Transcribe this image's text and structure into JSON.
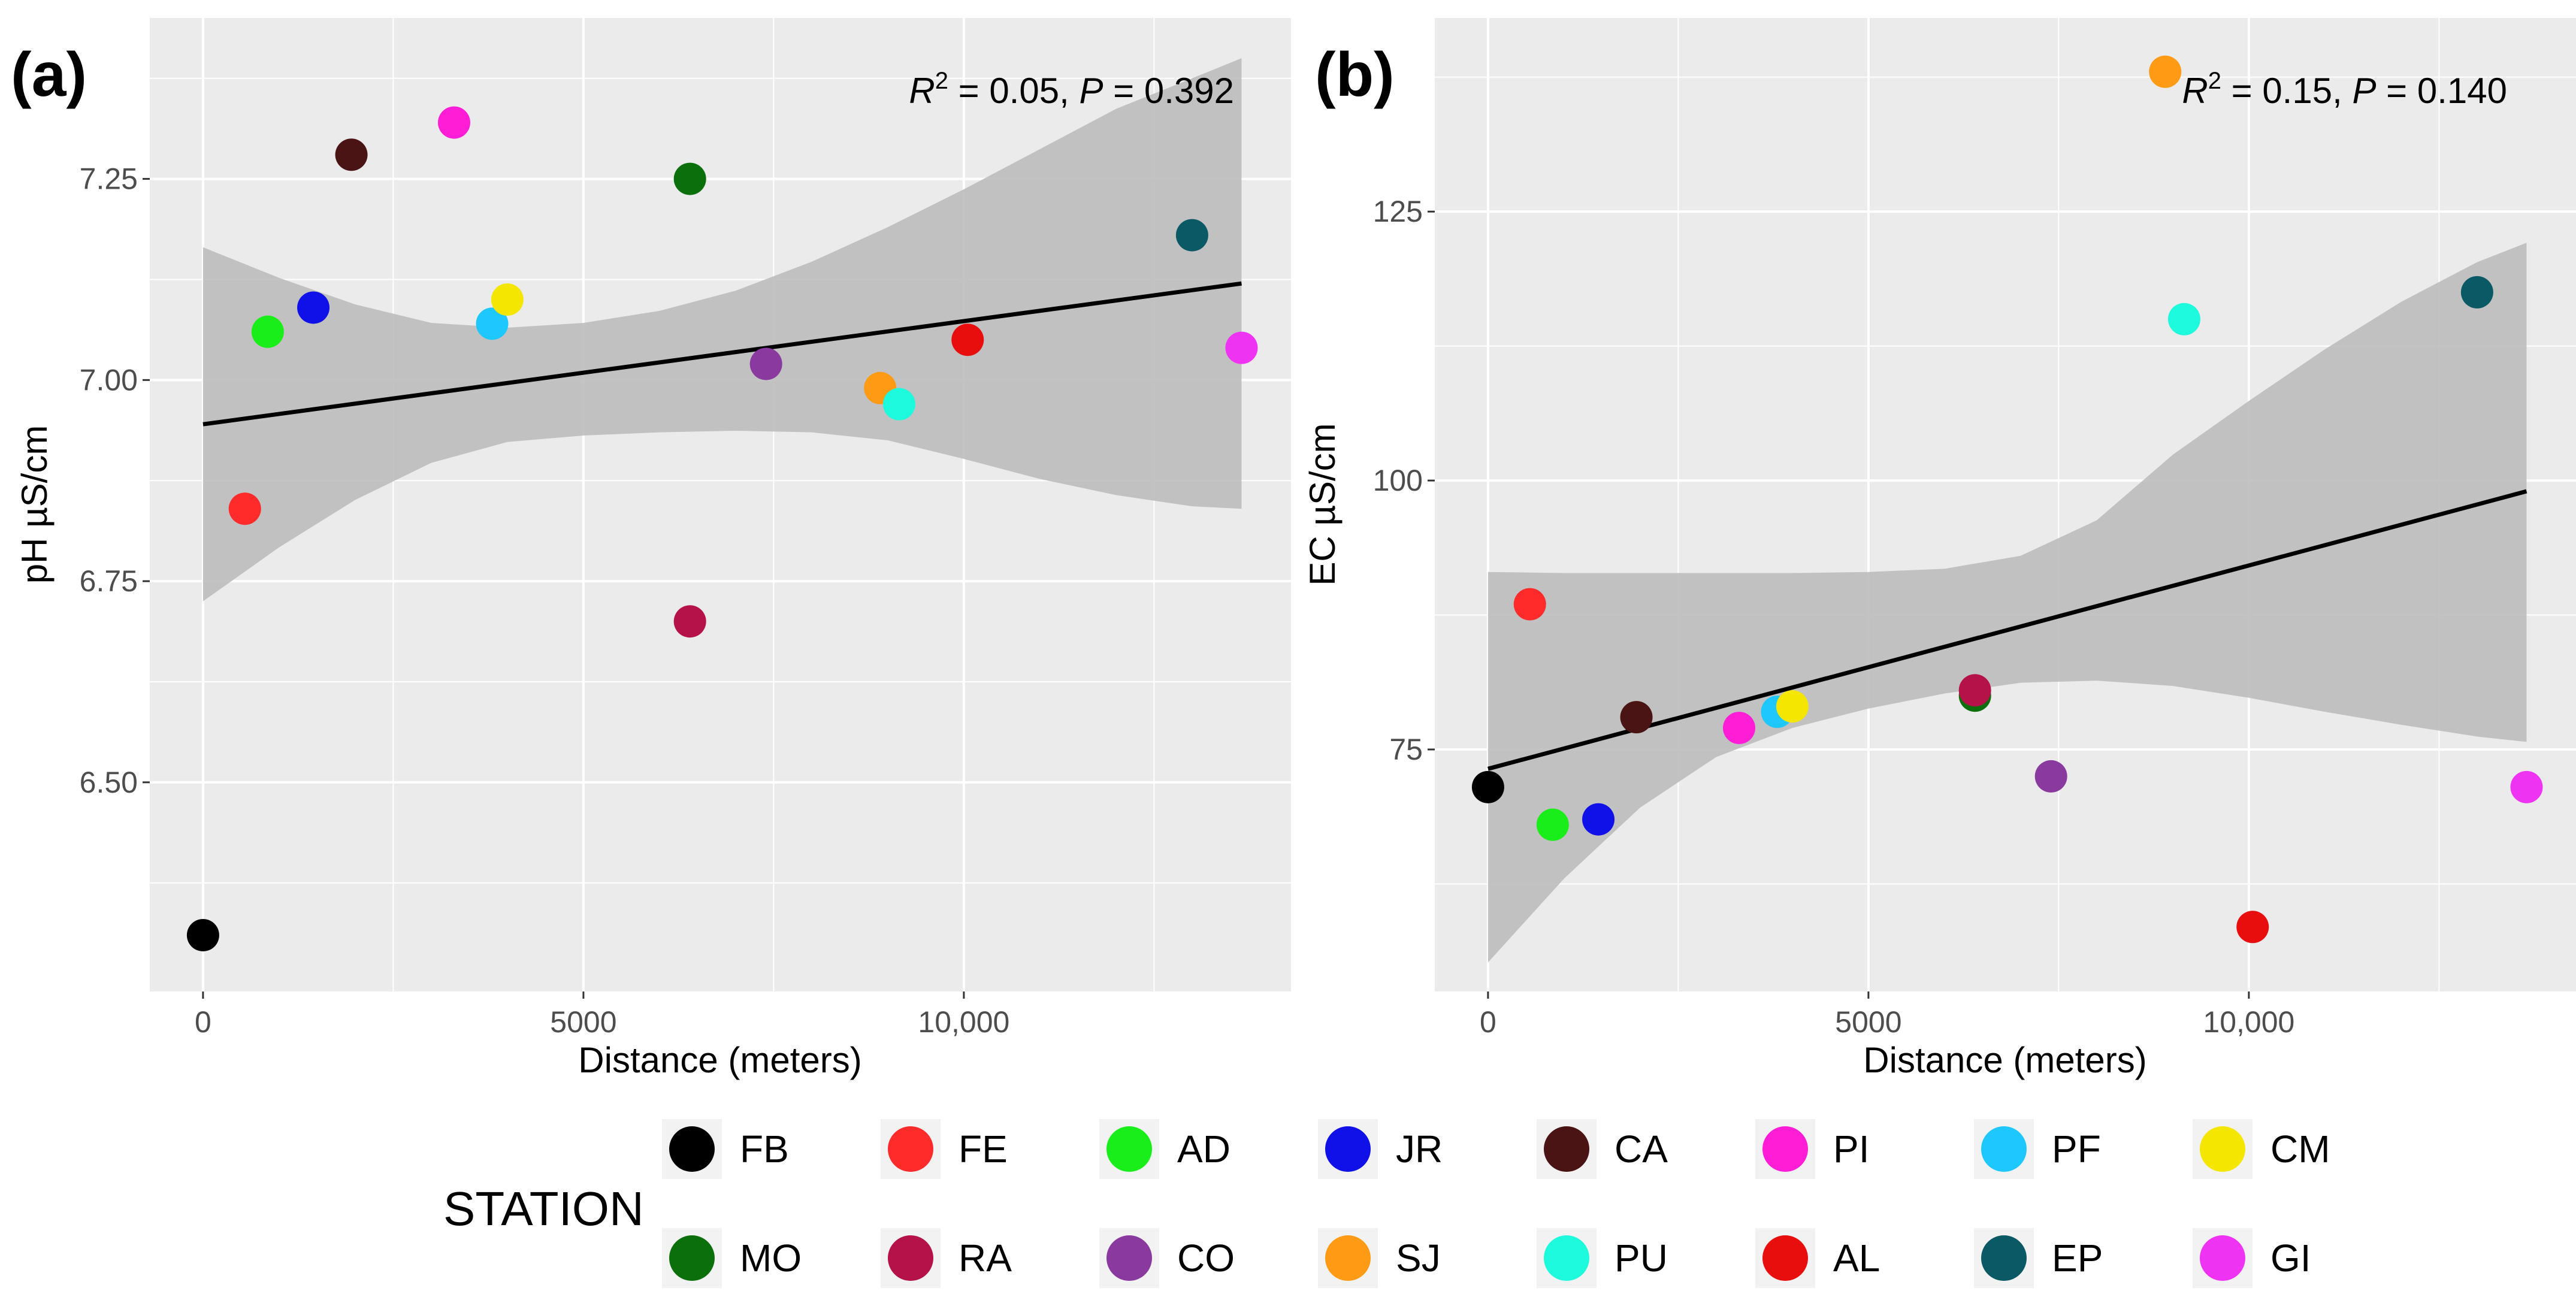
{
  "chart_data": [
    {
      "type": "scatter",
      "panel_label": "(a)",
      "xlabel": "Distance (meters)",
      "ylabel": "pH  µS/cm",
      "xlim": [
        -700,
        14300
      ],
      "ylim": [
        6.24,
        7.45
      ],
      "xticks": [
        0,
        5000,
        10000
      ],
      "xtick_labels": [
        "0",
        "5000",
        "10,000"
      ],
      "yticks": [
        6.5,
        6.75,
        7.0,
        7.25
      ],
      "ytick_labels": [
        "6.50",
        "6.75",
        "7.00",
        "7.25"
      ],
      "annotation": {
        "r2_label": "R",
        "r2_sup": "2",
        "r2_value": " = 0.05, ",
        "p_label": "P",
        "p_value": " = 0.392"
      },
      "fit": {
        "x": [
          0,
          13650
        ],
        "y": [
          6.945,
          7.12
        ]
      },
      "ci_band": {
        "x": [
          0,
          1000,
          2000,
          3000,
          4000,
          5000,
          6000,
          7000,
          8000,
          9000,
          10000,
          11000,
          12000,
          13000,
          13650
        ],
        "lower": [
          6.725,
          6.792,
          6.851,
          6.897,
          6.923,
          6.931,
          6.935,
          6.937,
          6.935,
          6.925,
          6.902,
          6.877,
          6.857,
          6.843,
          6.84
        ],
        "upper": [
          7.165,
          7.127,
          7.094,
          7.071,
          7.065,
          7.071,
          7.086,
          7.111,
          7.147,
          7.19,
          7.237,
          7.287,
          7.337,
          7.375,
          7.4
        ]
      },
      "points": [
        {
          "station": "FB",
          "x": 0,
          "y": 6.31
        },
        {
          "station": "FE",
          "x": 550,
          "y": 6.84
        },
        {
          "station": "AD",
          "x": 850,
          "y": 7.06
        },
        {
          "station": "JR",
          "x": 1450,
          "y": 7.09
        },
        {
          "station": "CA",
          "x": 1950,
          "y": 7.28
        },
        {
          "station": "PI",
          "x": 3300,
          "y": 7.32
        },
        {
          "station": "PF",
          "x": 3800,
          "y": 7.07
        },
        {
          "station": "CM",
          "x": 4000,
          "y": 7.1
        },
        {
          "station": "MO",
          "x": 6400,
          "y": 7.25
        },
        {
          "station": "RA",
          "x": 6400,
          "y": 6.7
        },
        {
          "station": "CO",
          "x": 7400,
          "y": 7.02
        },
        {
          "station": "SJ",
          "x": 8900,
          "y": 6.99
        },
        {
          "station": "PU",
          "x": 9150,
          "y": 6.97
        },
        {
          "station": "AL",
          "x": 10050,
          "y": 7.05
        },
        {
          "station": "EP",
          "x": 13000,
          "y": 7.18
        },
        {
          "station": "GI",
          "x": 13650,
          "y": 7.04
        }
      ]
    },
    {
      "type": "scatter",
      "panel_label": "(b)",
      "xlabel": "Distance (meters)",
      "ylabel": "EC  µS/cm",
      "xlim": [
        -700,
        14300
      ],
      "ylim": [
        52.5,
        143
      ],
      "xticks": [
        0,
        5000,
        10000
      ],
      "xtick_labels": [
        "0",
        "5000",
        "10,000"
      ],
      "yticks": [
        75,
        100,
        125
      ],
      "ytick_labels": [
        "75",
        "100",
        "125"
      ],
      "annotation": {
        "r2_label": "R",
        "r2_sup": "2",
        "r2_value": " = 0.15, ",
        "p_label": "P",
        "p_value": " = 0.140"
      },
      "fit": {
        "x": [
          0,
          13650
        ],
        "y": [
          73.2,
          99.0
        ]
      },
      "ci_band": {
        "x": [
          0,
          1000,
          2000,
          3000,
          4000,
          5000,
          6000,
          7000,
          8000,
          9000,
          10000,
          11000,
          12000,
          13000,
          13650
        ],
        "lower": [
          55.2,
          63.0,
          69.6,
          74.3,
          77.0,
          78.8,
          80.2,
          81.2,
          81.4,
          80.9,
          79.8,
          78.5,
          77.3,
          76.2,
          75.7
        ],
        "upper": [
          91.5,
          91.4,
          91.4,
          91.4,
          91.4,
          91.5,
          91.8,
          93.0,
          96.3,
          102.4,
          107.4,
          112.2,
          116.6,
          120.3,
          122.1
        ]
      },
      "points": [
        {
          "station": "FB",
          "x": 0,
          "y": 71.5
        },
        {
          "station": "FE",
          "x": 550,
          "y": 88.5
        },
        {
          "station": "AD",
          "x": 850,
          "y": 68.0
        },
        {
          "station": "JR",
          "x": 1450,
          "y": 68.5
        },
        {
          "station": "CA",
          "x": 1950,
          "y": 78.0
        },
        {
          "station": "PI",
          "x": 3300,
          "y": 77.0
        },
        {
          "station": "PF",
          "x": 3800,
          "y": 78.5
        },
        {
          "station": "CM",
          "x": 4000,
          "y": 79.0
        },
        {
          "station": "MO",
          "x": 6400,
          "y": 80.0
        },
        {
          "station": "RA",
          "x": 6400,
          "y": 80.5
        },
        {
          "station": "CO",
          "x": 7400,
          "y": 72.5
        },
        {
          "station": "SJ",
          "x": 8900,
          "y": 138.0
        },
        {
          "station": "PU",
          "x": 9150,
          "y": 115.0
        },
        {
          "station": "AL",
          "x": 10050,
          "y": 58.5
        },
        {
          "station": "EP",
          "x": 13000,
          "y": 117.5
        },
        {
          "station": "GI",
          "x": 13650,
          "y": 71.5
        }
      ]
    }
  ],
  "legend": {
    "title": "STATION",
    "placement": "bottom",
    "items": [
      {
        "station": "FB",
        "color": "#000000"
      },
      {
        "station": "FE",
        "color": "#ff2a2a"
      },
      {
        "station": "AD",
        "color": "#1aee1a"
      },
      {
        "station": "JR",
        "color": "#1010e8"
      },
      {
        "station": "CA",
        "color": "#4a1414"
      },
      {
        "station": "PI",
        "color": "#ff1ed6"
      },
      {
        "station": "PF",
        "color": "#1ec8ff"
      },
      {
        "station": "CM",
        "color": "#f5e600"
      },
      {
        "station": "MO",
        "color": "#0b700b"
      },
      {
        "station": "RA",
        "color": "#b5124a"
      },
      {
        "station": "CO",
        "color": "#8a3a9e"
      },
      {
        "station": "SJ",
        "color": "#ff9a14"
      },
      {
        "station": "PU",
        "color": "#1efadc"
      },
      {
        "station": "AL",
        "color": "#e80e0e"
      },
      {
        "station": "EP",
        "color": "#0a5a66"
      },
      {
        "station": "GI",
        "color": "#ee33f2"
      }
    ]
  },
  "colors": {
    "panel_bg": "#ebebeb",
    "grid": "#ffffff",
    "ci": "#bdbdbd",
    "fit": "#000000"
  }
}
